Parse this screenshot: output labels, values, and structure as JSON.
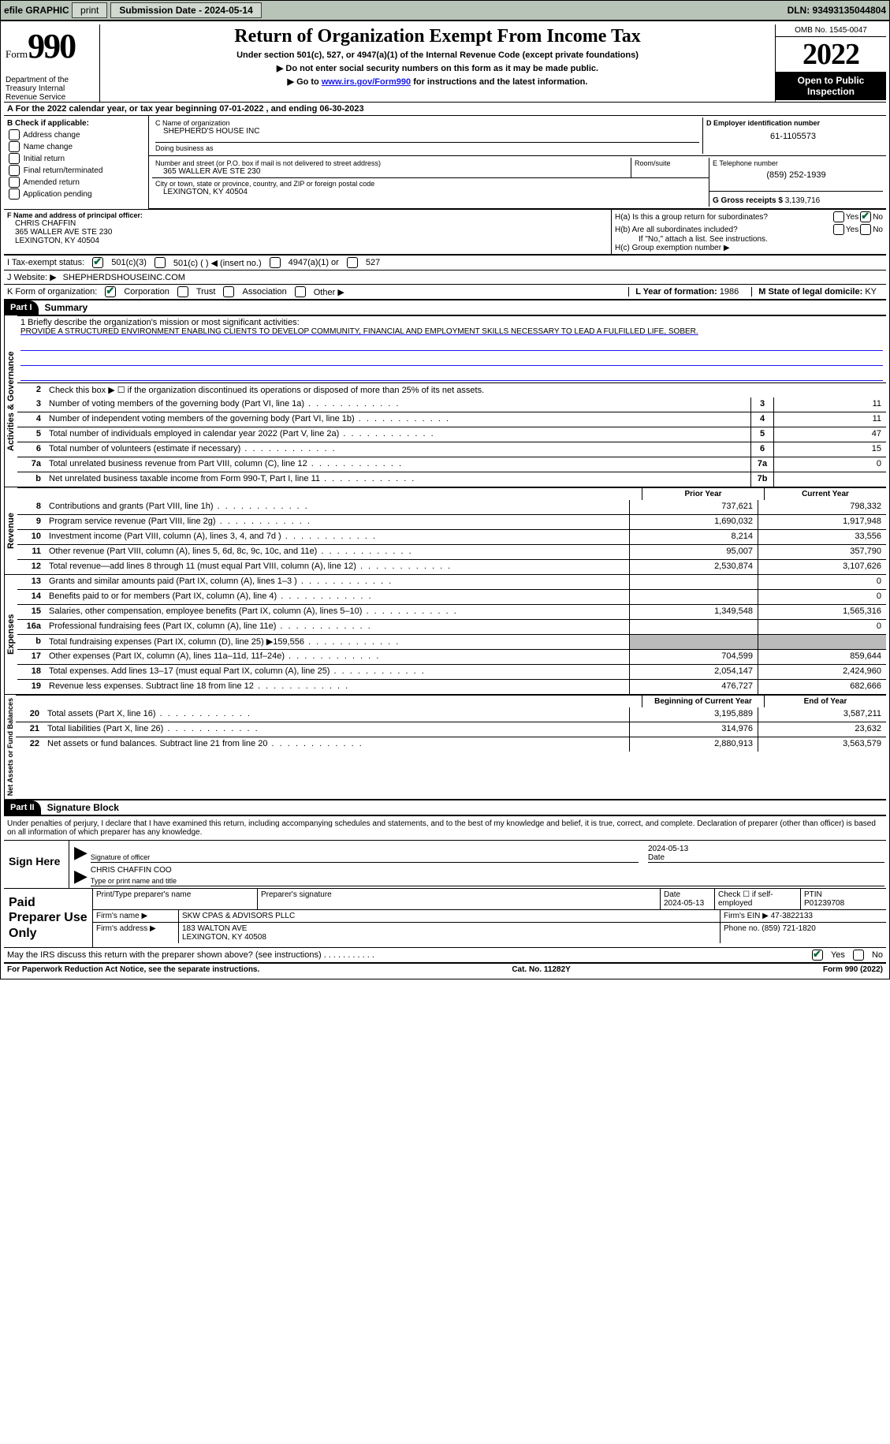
{
  "topbar": {
    "efile_label": "efile GRAPHIC",
    "print_btn": "print",
    "submission_label": "Submission Date - 2024-05-14",
    "dln_label": "DLN: 93493135044804"
  },
  "header": {
    "form_word": "Form",
    "form_number": "990",
    "dept": "Department of the Treasury Internal Revenue Service",
    "title": "Return of Organization Exempt From Income Tax",
    "subtitle": "Under section 501(c), 527, or 4947(a)(1) of the Internal Revenue Code (except private foundations)",
    "note1": "▶ Do not enter social security numbers on this form as it may be made public.",
    "note2_prefix": "▶ Go to ",
    "note2_link": "www.irs.gov/Form990",
    "note2_suffix": " for instructions and the latest information.",
    "omb": "OMB No. 1545-0047",
    "year": "2022",
    "open_inspection": "Open to Public Inspection"
  },
  "row_a": "A For the 2022 calendar year, or tax year beginning 07-01-2022    , and ending 06-30-2023",
  "col_b": {
    "header": "B Check if applicable:",
    "items": [
      "Address change",
      "Name change",
      "Initial return",
      "Final return/terminated",
      "Amended return",
      "Application pending"
    ]
  },
  "block_c": {
    "name_label": "C Name of organization",
    "name": "SHEPHERD'S HOUSE INC",
    "dba_label": "Doing business as",
    "dba": "",
    "addr_label": "Number and street (or P.O. box if mail is not delivered to street address)",
    "room_label": "Room/suite",
    "addr": "365 WALLER AVE STE 230",
    "city_label": "City or town, state or province, country, and ZIP or foreign postal code",
    "city": "LEXINGTON, KY  40504"
  },
  "block_d": {
    "label": "D Employer identification number",
    "value": "61-1105573"
  },
  "block_e": {
    "label": "E Telephone number",
    "value": "(859) 252-1939"
  },
  "block_g": {
    "label": "G Gross receipts $",
    "value": "3,139,716"
  },
  "block_f": {
    "label": "F Name and address of principal officer:",
    "name": "CHRIS CHAFFIN",
    "addr1": "365 WALLER AVE STE 230",
    "addr2": "LEXINGTON, KY  40504"
  },
  "block_h": {
    "ha": "H(a)  Is this a group return for subordinates?",
    "hb": "H(b)  Are all subordinates included?",
    "hb_note": "If \"No,\" attach a list. See instructions.",
    "hc": "H(c)  Group exemption number ▶",
    "yes": "Yes",
    "no": "No"
  },
  "line_i": {
    "label": "I   Tax-exempt status:",
    "o1": "501(c)(3)",
    "o2": "501(c) (  ) ◀ (insert no.)",
    "o3": "4947(a)(1) or",
    "o4": "527"
  },
  "line_j": {
    "label": "J   Website: ▶",
    "value": "SHEPHERDSHOUSEINC.COM"
  },
  "line_k": {
    "label": "K Form of organization:",
    "corp": "Corporation",
    "trust": "Trust",
    "assoc": "Association",
    "other": "Other ▶"
  },
  "line_l": {
    "label": "L Year of formation: ",
    "value": "1986"
  },
  "line_m": {
    "label": "M State of legal domicile: ",
    "value": "KY"
  },
  "parts": {
    "p1": "Part I",
    "p1_title": "Summary",
    "p2": "Part II",
    "p2_title": "Signature Block"
  },
  "summary": {
    "q1_label": "1   Briefly describe the organization's mission or most significant activities:",
    "q1_text": "PROVIDE A STRUCTURED ENVIRONMENT ENABLING CLIENTS TO DEVELOP COMMUNITY, FINANCIAL AND EMPLOYMENT SKILLS NECESSARY TO LEAD A FULFILLED LIFE, SOBER.",
    "q2": "Check this box ▶ ☐ if the organization discontinued its operations or disposed of more than 25% of its net assets.",
    "sections": {
      "gov": "Activities & Governance",
      "rev": "Revenue",
      "exp": "Expenses",
      "net": "Net Assets or Fund Balances"
    },
    "gov_rows": [
      {
        "n": "3",
        "t": "Number of voting members of the governing body (Part VI, line 1a)",
        "box": "3",
        "v": "11"
      },
      {
        "n": "4",
        "t": "Number of independent voting members of the governing body (Part VI, line 1b)",
        "box": "4",
        "v": "11"
      },
      {
        "n": "5",
        "t": "Total number of individuals employed in calendar year 2022 (Part V, line 2a)",
        "box": "5",
        "v": "47"
      },
      {
        "n": "6",
        "t": "Total number of volunteers (estimate if necessary)",
        "box": "6",
        "v": "15"
      },
      {
        "n": "7a",
        "t": "Total unrelated business revenue from Part VIII, column (C), line 12",
        "box": "7a",
        "v": "0"
      },
      {
        "n": "b",
        "t": "Net unrelated business taxable income from Form 990-T, Part I, line 11",
        "box": "7b",
        "v": ""
      }
    ],
    "col_hdrs": {
      "prior": "Prior Year",
      "current": "Current Year",
      "beg": "Beginning of Current Year",
      "end": "End of Year"
    },
    "rev_rows": [
      {
        "n": "8",
        "t": "Contributions and grants (Part VIII, line 1h)",
        "p": "737,621",
        "c": "798,332"
      },
      {
        "n": "9",
        "t": "Program service revenue (Part VIII, line 2g)",
        "p": "1,690,032",
        "c": "1,917,948"
      },
      {
        "n": "10",
        "t": "Investment income (Part VIII, column (A), lines 3, 4, and 7d )",
        "p": "8,214",
        "c": "33,556"
      },
      {
        "n": "11",
        "t": "Other revenue (Part VIII, column (A), lines 5, 6d, 8c, 9c, 10c, and 11e)",
        "p": "95,007",
        "c": "357,790"
      },
      {
        "n": "12",
        "t": "Total revenue—add lines 8 through 11 (must equal Part VIII, column (A), line 12)",
        "p": "2,530,874",
        "c": "3,107,626"
      }
    ],
    "exp_rows": [
      {
        "n": "13",
        "t": "Grants and similar amounts paid (Part IX, column (A), lines 1–3 )",
        "p": "",
        "c": "0"
      },
      {
        "n": "14",
        "t": "Benefits paid to or for members (Part IX, column (A), line 4)",
        "p": "",
        "c": "0"
      },
      {
        "n": "15",
        "t": "Salaries, other compensation, employee benefits (Part IX, column (A), lines 5–10)",
        "p": "1,349,548",
        "c": "1,565,316"
      },
      {
        "n": "16a",
        "t": "Professional fundraising fees (Part IX, column (A), line 11e)",
        "p": "",
        "c": "0"
      },
      {
        "n": "b",
        "t": "Total fundraising expenses (Part IX, column (D), line 25) ▶159,556",
        "p": "shade",
        "c": "shade"
      },
      {
        "n": "17",
        "t": "Other expenses (Part IX, column (A), lines 11a–11d, 11f–24e)",
        "p": "704,599",
        "c": "859,644"
      },
      {
        "n": "18",
        "t": "Total expenses. Add lines 13–17 (must equal Part IX, column (A), line 25)",
        "p": "2,054,147",
        "c": "2,424,960"
      },
      {
        "n": "19",
        "t": "Revenue less expenses. Subtract line 18 from line 12",
        "p": "476,727",
        "c": "682,666"
      }
    ],
    "net_rows": [
      {
        "n": "20",
        "t": "Total assets (Part X, line 16)",
        "p": "3,195,889",
        "c": "3,587,211"
      },
      {
        "n": "21",
        "t": "Total liabilities (Part X, line 26)",
        "p": "314,976",
        "c": "23,632"
      },
      {
        "n": "22",
        "t": "Net assets or fund balances. Subtract line 21 from line 20",
        "p": "2,880,913",
        "c": "3,563,579"
      }
    ]
  },
  "signature": {
    "declaration": "Under penalties of perjury, I declare that I have examined this return, including accompanying schedules and statements, and to the best of my knowledge and belief, it is true, correct, and complete. Declaration of preparer (other than officer) is based on all information of which preparer has any knowledge.",
    "sign_here": "Sign Here",
    "sig_officer_lbl": "Signature of officer",
    "date_val": "2024-05-13",
    "date_lbl": "Date",
    "name_val": "CHRIS CHAFFIN  COO",
    "name_lbl": "Type or print name and title"
  },
  "preparer": {
    "title": "Paid Preparer Use Only",
    "h_print": "Print/Type preparer's name",
    "h_sig": "Preparer's signature",
    "h_date": "Date",
    "date_val": "2024-05-13",
    "h_check": "Check ☐ if self-employed",
    "h_ptin": "PTIN",
    "ptin_val": "P01239708",
    "firm_name_lbl": "Firm's name      ▶",
    "firm_name": "SKW CPAS & ADVISORS PLLC",
    "firm_ein_lbl": "Firm's EIN ▶",
    "firm_ein": "47-3822133",
    "firm_addr_lbl": "Firm's address ▶",
    "firm_addr1": "183 WALTON AVE",
    "firm_addr2": "LEXINGTON, KY  40508",
    "phone_lbl": "Phone no.",
    "phone": "(859) 721-1820"
  },
  "discuss": {
    "text": "May the IRS discuss this return with the preparer shown above? (see instructions)",
    "yes": "Yes",
    "no": "No"
  },
  "footer": {
    "left": "For Paperwork Reduction Act Notice, see the separate instructions.",
    "mid": "Cat. No. 11282Y",
    "right": "Form 990 (2022)"
  }
}
